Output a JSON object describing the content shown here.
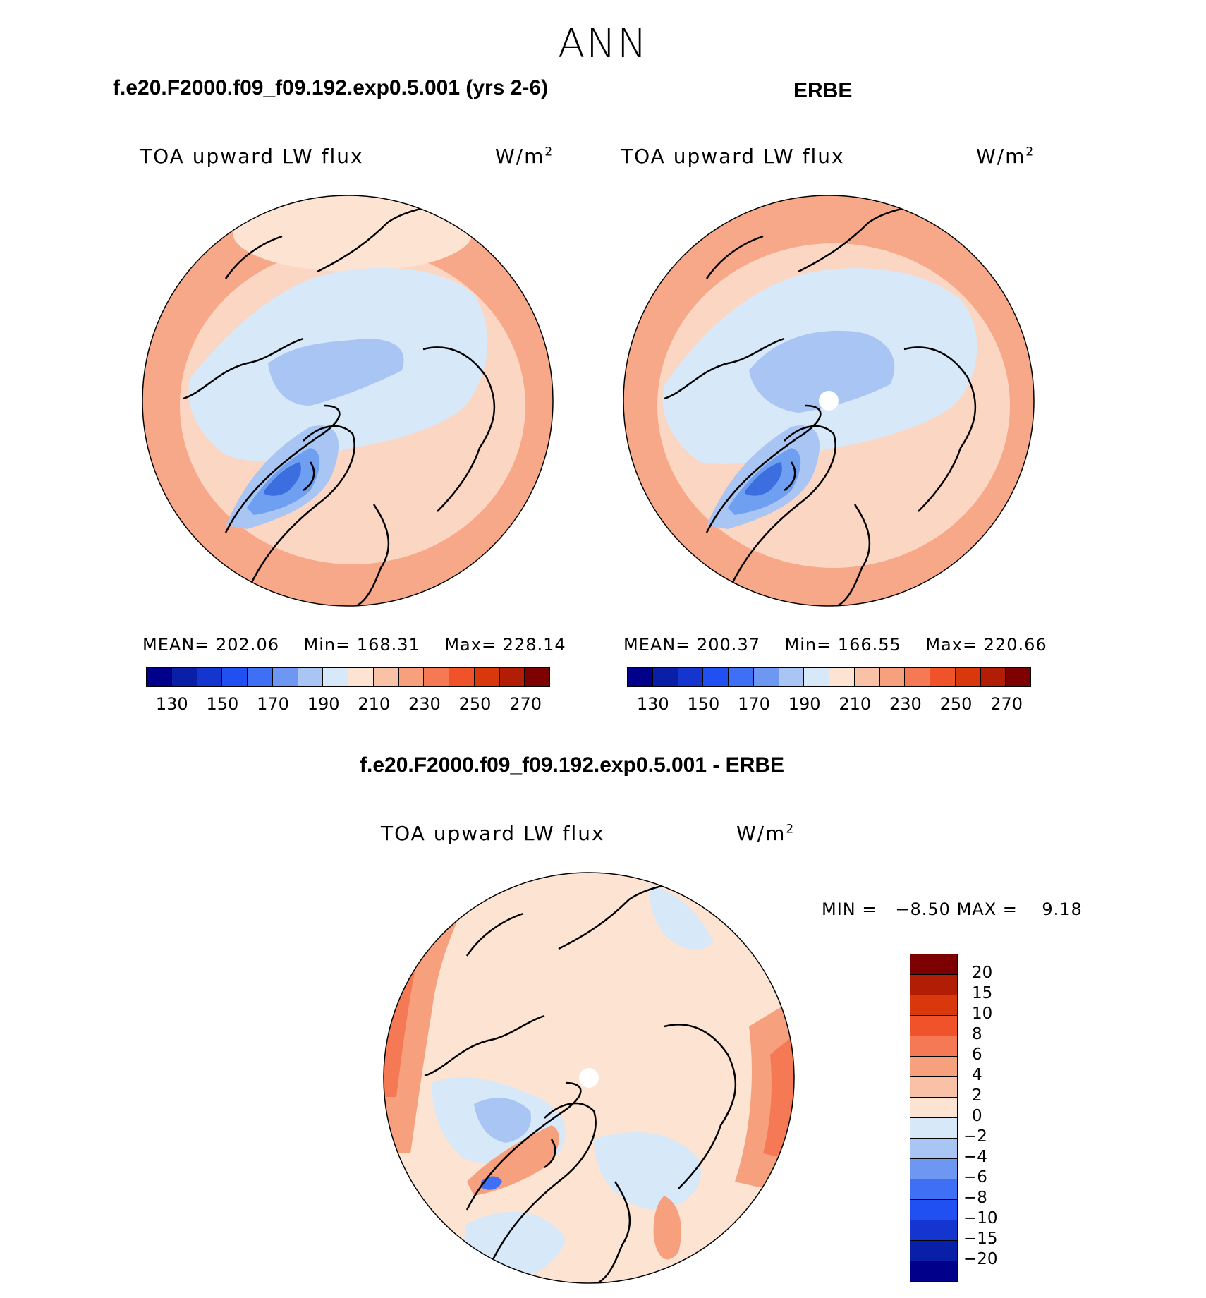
{
  "main_title": "ANN",
  "panels": [
    {
      "title": "f.e20.F2000.f09_f09.192.exp0.5.001 (yrs 2-6)",
      "subtitle": "TOA upward LW flux",
      "units": "W/m",
      "units_sup": "2",
      "mean_label": "MEAN=",
      "mean": "202.06",
      "min_label": "Min=",
      "min": "168.31",
      "max_label": "Max=",
      "max": "228.14"
    },
    {
      "title": "ERBE",
      "subtitle": "TOA upward LW flux",
      "units": "W/m",
      "units_sup": "2",
      "mean_label": "MEAN=",
      "mean": "200.37",
      "min_label": "Min=",
      "min": "166.55",
      "max_label": "Max=",
      "max": "220.66"
    }
  ],
  "diff_panel": {
    "title": "f.e20.F2000.f09_f09.192.exp0.5.001 - ERBE",
    "subtitle": "TOA upward LW flux",
    "units": "W/m",
    "units_sup": "2",
    "min_label": "MIN =",
    "min": "−8.50",
    "max_label": "MAX =",
    "max": "9.18"
  },
  "colors": {
    "ocean_warm": "#f8bfa3",
    "arctic_blue": "#d0e4f8",
    "mid_blue": "#a9c8f4",
    "deep_blue": "#6f9ff0",
    "core_blue": "#3d6ee0",
    "land_line": "#000000"
  },
  "chart_data": [
    {
      "type": "heatmap",
      "title": "f.e20.F2000.f09_f09.192.exp0.5.001 (yrs 2-6)",
      "variable": "TOA upward LW flux",
      "projection": "north polar stereographic",
      "mean": 202.06,
      "min": 168.31,
      "max": 228.14,
      "colorbar": {
        "orientation": "horizontal",
        "levels": [
          130,
          140,
          150,
          160,
          170,
          180,
          190,
          200,
          210,
          220,
          230,
          240,
          250,
          260,
          270
        ],
        "tick_labels": [
          "130",
          "150",
          "170",
          "190",
          "210",
          "230",
          "250",
          "270"
        ],
        "colors": [
          "#00008b",
          "#0a1fa8",
          "#1535cf",
          "#2150f2",
          "#3e6ff5",
          "#6e97f2",
          "#a9c5f4",
          "#d7e8f9",
          "#fde3d2",
          "#f9c2a6",
          "#f6a07e",
          "#f47954",
          "#f0522a",
          "#d9380d",
          "#b11e05",
          "#7c0100"
        ]
      }
    },
    {
      "type": "heatmap",
      "title": "ERBE",
      "variable": "TOA upward LW flux",
      "projection": "north polar stereographic",
      "mean": 200.37,
      "min": 166.55,
      "max": 220.66,
      "colorbar": {
        "orientation": "horizontal",
        "levels": [
          130,
          140,
          150,
          160,
          170,
          180,
          190,
          200,
          210,
          220,
          230,
          240,
          250,
          260,
          270
        ],
        "tick_labels": [
          "130",
          "150",
          "170",
          "190",
          "210",
          "230",
          "250",
          "270"
        ],
        "colors": [
          "#00008b",
          "#0a1fa8",
          "#1535cf",
          "#2150f2",
          "#3e6ff5",
          "#6e97f2",
          "#a9c5f4",
          "#d7e8f9",
          "#fde3d2",
          "#f9c2a6",
          "#f6a07e",
          "#f47954",
          "#f0522a",
          "#d9380d",
          "#b11e05",
          "#7c0100"
        ]
      }
    },
    {
      "type": "heatmap",
      "title": "f.e20.F2000.f09_f09.192.exp0.5.001 - ERBE",
      "variable": "TOA upward LW flux",
      "projection": "north polar stereographic",
      "min": -8.5,
      "max": 9.18,
      "colorbar": {
        "orientation": "vertical",
        "tick_labels": [
          "20",
          "15",
          "10",
          "8",
          "6",
          "4",
          "2",
          "0",
          "−2",
          "−4",
          "−6",
          "−8",
          "−10",
          "−15",
          "−20"
        ],
        "colors": [
          "#7c0100",
          "#b11e05",
          "#d9380d",
          "#f0522a",
          "#f47954",
          "#f6a07e",
          "#f9c2a6",
          "#fde3d2",
          "#d7e8f9",
          "#a9c5f4",
          "#6e97f2",
          "#3e6ff5",
          "#2150f2",
          "#1535cf",
          "#0a1fa8",
          "#00008b"
        ]
      }
    }
  ]
}
